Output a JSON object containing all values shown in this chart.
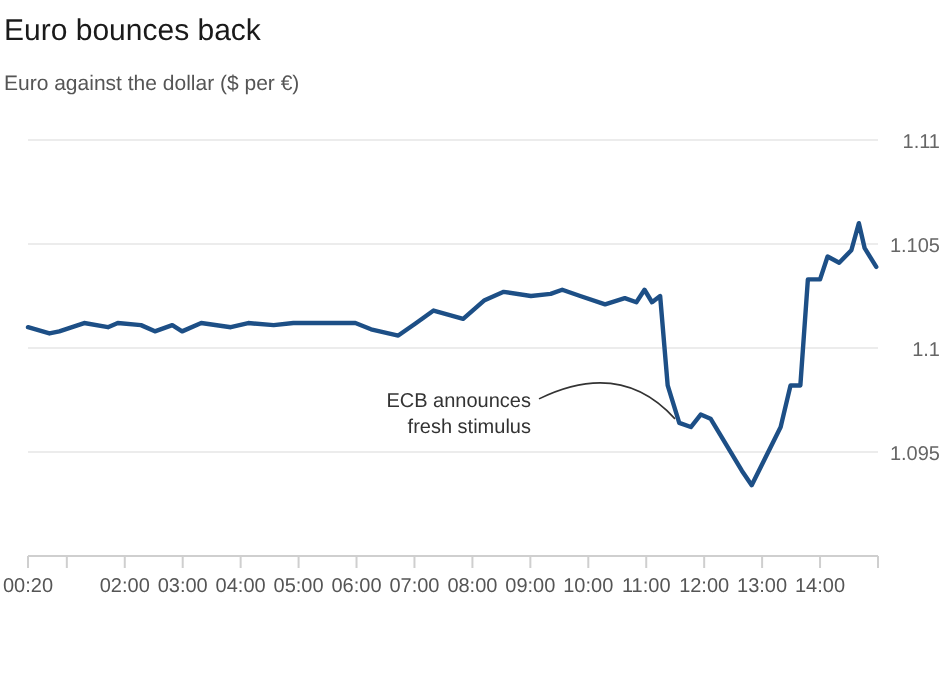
{
  "chart_data": {
    "type": "line",
    "title": "Euro bounces back",
    "subtitle": "Euro against the dollar ($ per €)",
    "x": [
      0.33,
      0.7,
      0.87,
      1.3,
      1.71,
      1.88,
      2.28,
      2.52,
      2.82,
      2.99,
      3.32,
      3.83,
      4.13,
      4.57,
      4.91,
      5.98,
      6.25,
      6.72,
      7.03,
      7.33,
      7.84,
      8.21,
      8.54,
      9.01,
      9.35,
      9.55,
      9.86,
      10.29,
      10.63,
      10.83,
      10.97,
      11.1,
      11.24,
      11.37,
      11.57,
      11.77,
      11.94,
      12.11,
      12.65,
      12.82,
      13.32,
      13.49,
      13.66,
      13.79,
      14.0,
      14.13,
      14.33,
      14.54,
      14.67,
      14.77,
      14.97
    ],
    "series": [
      {
        "color": "#1d4f86",
        "values": [
          1.101,
          1.1007,
          1.1008,
          1.1012,
          1.101,
          1.1012,
          1.1011,
          1.1008,
          1.1011,
          1.1008,
          1.1012,
          1.101,
          1.1012,
          1.1011,
          1.1012,
          1.1012,
          1.1009,
          1.1006,
          1.1012,
          1.1018,
          1.1014,
          1.1023,
          1.1027,
          1.1025,
          1.1026,
          1.1028,
          1.1025,
          1.1021,
          1.1024,
          1.1022,
          1.1028,
          1.1022,
          1.1025,
          1.0982,
          1.0964,
          1.0962,
          1.0968,
          1.0966,
          1.0941,
          1.0934,
          1.0962,
          1.0982,
          1.0982,
          1.1033,
          1.1033,
          1.1044,
          1.1041,
          1.1047,
          1.106,
          1.1048,
          1.1039
        ]
      }
    ],
    "xlim": [
      0.33,
      15
    ],
    "ylim": [
      1.09,
      1.11
    ],
    "xticks": [
      {
        "value": 0.33,
        "label": "00:20"
      },
      {
        "value": 1,
        "label": null
      },
      {
        "value": 2,
        "label": "02:00"
      },
      {
        "value": 3,
        "label": "03:00"
      },
      {
        "value": 4,
        "label": "04:00"
      },
      {
        "value": 5,
        "label": "05:00"
      },
      {
        "value": 6,
        "label": "06:00"
      },
      {
        "value": 7,
        "label": "07:00"
      },
      {
        "value": 8,
        "label": "08:00"
      },
      {
        "value": 9,
        "label": "09:00"
      },
      {
        "value": 10,
        "label": "10:00"
      },
      {
        "value": 11,
        "label": "11:00"
      },
      {
        "value": 12,
        "label": "12:00"
      },
      {
        "value": 13,
        "label": "13:00"
      },
      {
        "value": 14,
        "label": "14:00"
      },
      {
        "value": 15,
        "label": null
      }
    ],
    "yticks": [
      {
        "value": 1.09,
        "label": null
      },
      1.095,
      1.1,
      1.105,
      1.11
    ],
    "grid": "y",
    "marker": "none",
    "line_style": "solid",
    "annotations": [
      {
        "text": "ECB announces\nfresh stimulus",
        "x": 11.6,
        "y": 1.0964
      }
    ]
  }
}
